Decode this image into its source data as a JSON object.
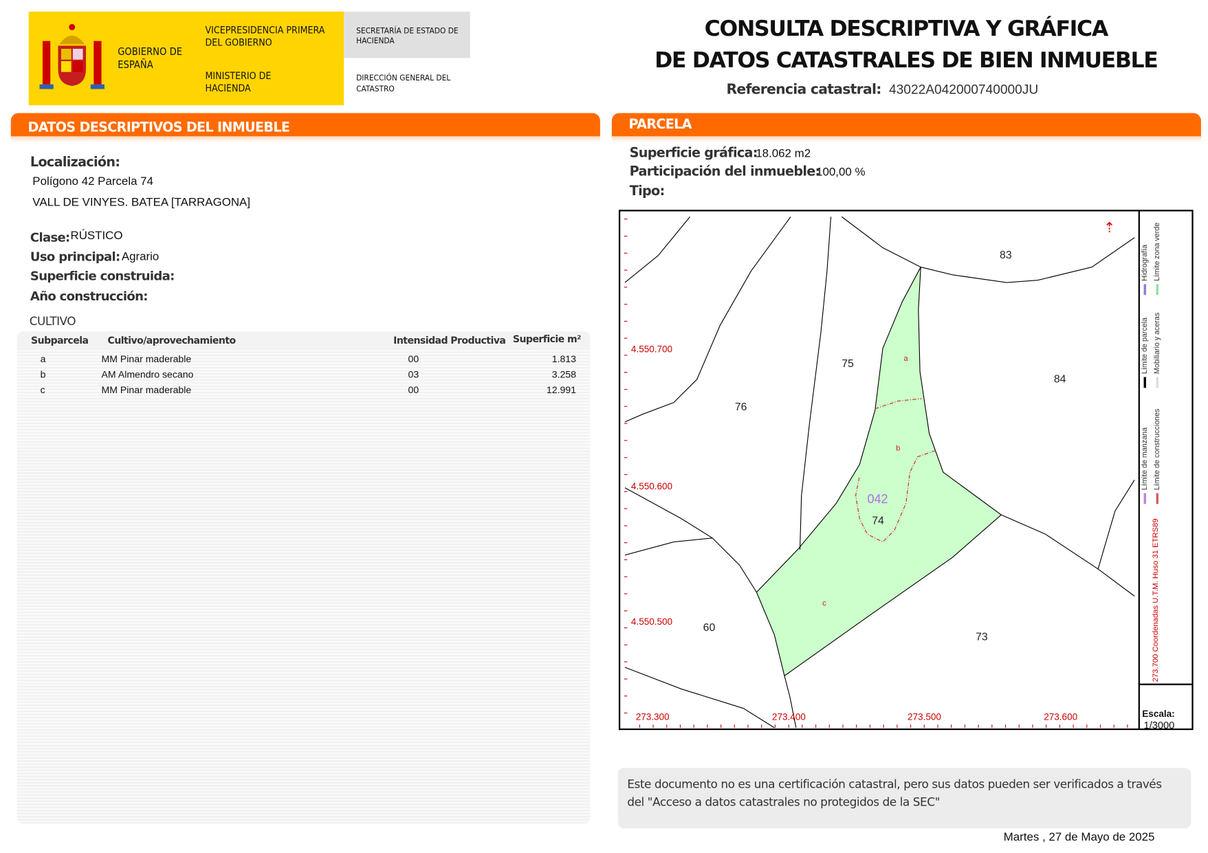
{
  "header": {
    "logo": {
      "gobierno": "GOBIERNO DE ESPAÑA",
      "vicepresidencia": "VICEPRESIDENCIA PRIMERA DEL GOBIERNO",
      "ministerio": "MINISTERIO DE HACIENDA",
      "secretaria": "SECRETARÍA DE ESTADO DE HACIENDA",
      "direccion": "DIRECCIÓN GENERAL DEL CATASTRO"
    },
    "title_line1": "CONSULTA DESCRIPTIVA Y GRÁFICA",
    "title_line2": "DE DATOS CATASTRALES DE BIEN INMUEBLE",
    "ref_label": "Referencia catastral:",
    "ref_value": "43022A042000740000JU"
  },
  "colors": {
    "accent": "#ff6a00",
    "logo_yellow": "#ffd400",
    "parcel_fill": "#ccffcc",
    "axis_red": "#cc0000"
  },
  "descriptivos": {
    "title": "DATOS DESCRIPTIVOS DEL INMUEBLE",
    "localizacion_label": "Localización:",
    "localizacion_line1": "Polígono 42 Parcela 74",
    "localizacion_line2": "VALL DE VINYES. BATEA [TARRAGONA]",
    "clase_label": "Clase:",
    "clase_value": "RÚSTICO",
    "uso_label": "Uso principal:",
    "uso_value": "Agrario",
    "superficie_label": "Superficie construida:",
    "ano_label": "Año construcción:"
  },
  "cultivo": {
    "title": "CULTIVO",
    "headers": [
      "Subparcela",
      "Cultivo/aprovechamiento",
      "Intensidad Productiva",
      "Superficie m²"
    ],
    "rows": [
      [
        "a",
        "MM Pinar maderable",
        "00",
        "1.813"
      ],
      [
        "b",
        "AM Almendro secano",
        "03",
        "3.258"
      ],
      [
        "c",
        "MM Pinar maderable",
        "00",
        "12.991"
      ]
    ]
  },
  "parcela": {
    "title": "PARCELA",
    "superficie_label": "Superficie gráfica:",
    "superficie_value": "18.062 m2",
    "participacion_label": "Participación del inmueble:",
    "participacion_value": "100,00 %",
    "tipo_label": "Tipo:"
  },
  "map": {
    "parcel_labels": {
      "p83": "83",
      "p84": "84",
      "p75": "75",
      "p76": "76",
      "p74": "74",
      "p60": "60",
      "p73": "73",
      "poligono": "042"
    },
    "subparcel_labels": {
      "a": "a",
      "b": "b",
      "c": "c"
    },
    "y_ticks": [
      "4.550.700",
      "4.550.600",
      "4.550.500"
    ],
    "x_ticks": [
      "273.300",
      "273.400",
      "273.500",
      "273.600"
    ],
    "coord_note": "273.700 Coordenadas U.T.M. Huso 31 ETRS89",
    "legend": [
      {
        "label": "Límite de manzana",
        "color": "#c080e0"
      },
      {
        "label": "Límite de construcciones",
        "color": "#d06060"
      },
      {
        "label": "Límite de parcela",
        "color": "#000000"
      },
      {
        "label": "Mobiliario y aceras",
        "color": "#dddddd"
      },
      {
        "label": "Hidrografía",
        "color": "#8080e0"
      },
      {
        "label": "Límite zona verde",
        "color": "#90e0a0"
      }
    ],
    "scale_label": "Escala:",
    "scale_value": "1/3000",
    "north_icon": "north-arrow-icon"
  },
  "notice": "Este documento no es una certificación catastral, pero sus datos pueden ser verificados a través del \"Acceso a datos catastrales no protegidos de la SEC\"",
  "date": "Martes , 27 de Mayo de 2025"
}
